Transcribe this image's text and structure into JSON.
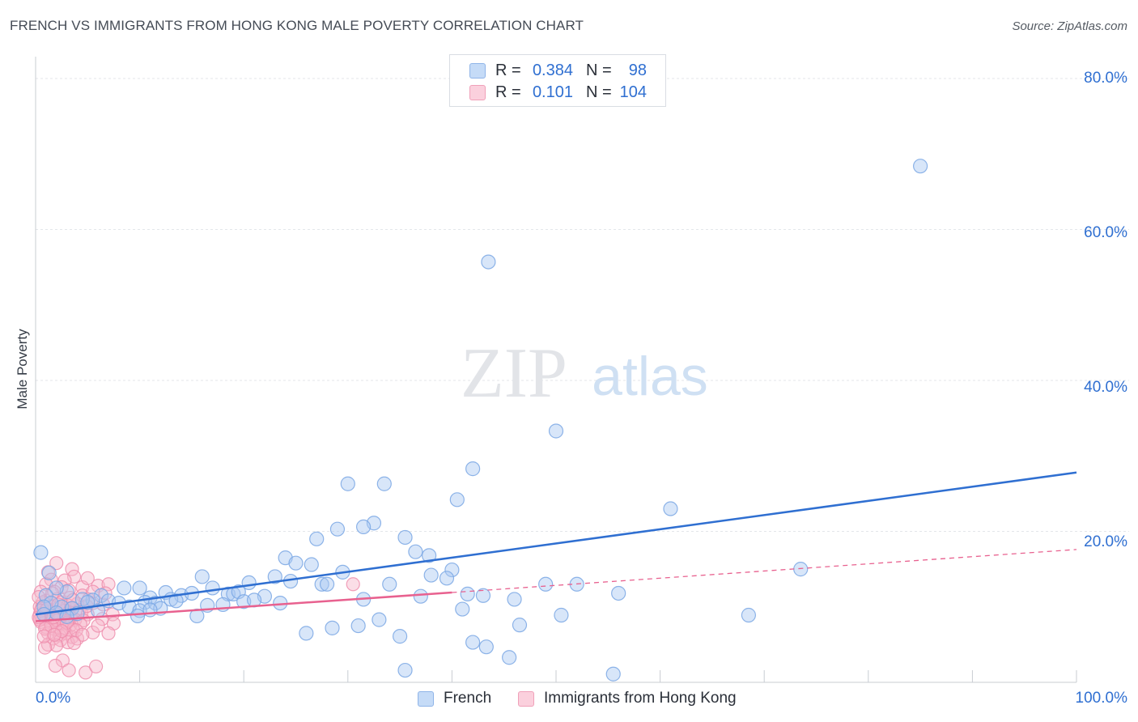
{
  "header": {
    "title": "FRENCH VS IMMIGRANTS FROM HONG KONG MALE POVERTY CORRELATION CHART",
    "source": "Source: ZipAtlas.com"
  },
  "watermark": {
    "zip": "ZIP",
    "atlas": "atlas"
  },
  "legend_top": {
    "rows": [
      {
        "r_label": "R =",
        "r_value": "0.384",
        "n_label": "N =",
        "n_value": "98",
        "color": "#a9c8f1"
      },
      {
        "r_label": "R =",
        "r_value": "0.101",
        "n_label": "N =",
        "n_value": "104",
        "color": "#f6b6c9"
      }
    ]
  },
  "legend_bottom": {
    "items": [
      {
        "label": "French",
        "color": "#a9c8f1"
      },
      {
        "label": "Immigrants from Hong Kong",
        "color": "#f6b6c9"
      }
    ]
  },
  "axes": {
    "y_ticks": [
      "80.0%",
      "60.0%",
      "40.0%",
      "20.0%"
    ],
    "x_left": "0.0%",
    "x_right": "100.0%"
  },
  "chart_data": {
    "type": "scatter",
    "title": "FRENCH VS IMMIGRANTS FROM HONG KONG MALE POVERTY CORRELATION CHART",
    "xlabel": "",
    "ylabel": "Male Poverty",
    "xlim": [
      0,
      100
    ],
    "ylim": [
      0,
      82
    ],
    "y_ticks": [
      20,
      40,
      60,
      80
    ],
    "grid": true,
    "legend": "bottom-center",
    "colors": {
      "french": "#2f6fd1",
      "french_fill": "#a9c8f1",
      "hongkong": "#e8618f",
      "hongkong_fill": "#f6b6c9"
    },
    "series": [
      {
        "name": "French",
        "r": 0.384,
        "n": 98,
        "trend": {
          "x": [
            0,
            100
          ],
          "y": [
            9.0,
            27.8
          ],
          "style": "solid"
        },
        "points": [
          [
            85,
            68.4
          ],
          [
            43.5,
            55.7
          ],
          [
            50,
            33.3
          ],
          [
            42,
            28.3
          ],
          [
            30,
            26.3
          ],
          [
            33.5,
            26.3
          ],
          [
            40.5,
            24.2
          ],
          [
            61,
            23
          ],
          [
            32.5,
            21.1
          ],
          [
            31.5,
            20.6
          ],
          [
            29,
            20.3
          ],
          [
            35.5,
            19.2
          ],
          [
            27,
            19
          ],
          [
            36.5,
            17.3
          ],
          [
            37.8,
            16.8
          ],
          [
            24,
            16.5
          ],
          [
            25,
            15.8
          ],
          [
            26.5,
            15.6
          ],
          [
            73.5,
            15
          ],
          [
            40,
            14.9
          ],
          [
            29.5,
            14.6
          ],
          [
            38,
            14.2
          ],
          [
            39.5,
            13.8
          ],
          [
            23,
            14
          ],
          [
            16,
            14
          ],
          [
            20.5,
            13.2
          ],
          [
            24.5,
            13.4
          ],
          [
            27.5,
            13
          ],
          [
            28,
            13
          ],
          [
            34,
            13
          ],
          [
            49,
            13
          ],
          [
            52,
            13
          ],
          [
            8.5,
            12.5
          ],
          [
            10,
            12.5
          ],
          [
            17,
            12.5
          ],
          [
            18.5,
            11.7
          ],
          [
            19,
            11.7
          ],
          [
            19.5,
            12
          ],
          [
            22,
            11.4
          ],
          [
            12.5,
            11.9
          ],
          [
            14,
            11.5
          ],
          [
            15,
            11.8
          ],
          [
            11,
            11.2
          ],
          [
            13,
            11
          ],
          [
            6.3,
            11.5
          ],
          [
            7,
            10.8
          ],
          [
            5.5,
            10.9
          ],
          [
            8,
            10.5
          ],
          [
            3,
            12
          ],
          [
            4.5,
            11
          ],
          [
            5,
            10.6
          ],
          [
            10.5,
            10.6
          ],
          [
            11.5,
            10.5
          ],
          [
            12,
            9.8
          ],
          [
            13.5,
            10.8
          ],
          [
            16.5,
            10.2
          ],
          [
            18,
            10.3
          ],
          [
            20,
            10.7
          ],
          [
            21,
            10.9
          ],
          [
            23.5,
            10.5
          ],
          [
            31.5,
            11
          ],
          [
            37,
            11.4
          ],
          [
            43,
            11.5
          ],
          [
            46,
            11
          ],
          [
            56,
            11.8
          ],
          [
            41.5,
            11.7
          ],
          [
            2.5,
            10
          ],
          [
            3.5,
            9.8
          ],
          [
            4,
            9.1
          ],
          [
            6,
            9.5
          ],
          [
            9,
            10
          ],
          [
            10,
            9.5
          ],
          [
            11,
            9.6
          ],
          [
            9.8,
            8.8
          ],
          [
            15.5,
            8.8
          ],
          [
            41,
            9.7
          ],
          [
            50.5,
            8.9
          ],
          [
            68.5,
            8.9
          ],
          [
            33,
            8.3
          ],
          [
            31,
            7.5
          ],
          [
            28.5,
            7.2
          ],
          [
            46.5,
            7.6
          ],
          [
            26,
            6.5
          ],
          [
            35,
            6.1
          ],
          [
            42,
            5.3
          ],
          [
            43.3,
            4.7
          ],
          [
            45.5,
            3.3
          ],
          [
            35.5,
            1.6
          ],
          [
            55.5,
            1.1
          ],
          [
            0.5,
            17.2
          ],
          [
            1.3,
            14.5
          ],
          [
            2,
            12.5
          ],
          [
            1,
            11.5
          ],
          [
            1.5,
            10.5
          ],
          [
            0.8,
            10
          ],
          [
            2,
            9.2
          ],
          [
            3,
            8.7
          ],
          [
            0.8,
            9
          ]
        ]
      },
      {
        "name": "Immigrants from Hong Kong",
        "r": 0.101,
        "n": 104,
        "trend": {
          "x": [
            0,
            100
          ],
          "y": [
            8.1,
            17.6
          ],
          "style": "solid to 40, dashed beyond"
        },
        "points": [
          [
            2,
            15.8
          ],
          [
            3.5,
            15
          ],
          [
            1.2,
            14.6
          ],
          [
            3.7,
            14
          ],
          [
            1.5,
            13.6
          ],
          [
            2.8,
            13.5
          ],
          [
            1,
            13
          ],
          [
            2.5,
            12.6
          ],
          [
            3.2,
            12.2
          ],
          [
            4.5,
            12.6
          ],
          [
            1.8,
            12
          ],
          [
            6,
            12.8
          ],
          [
            0.5,
            12
          ],
          [
            4.5,
            11.5
          ],
          [
            3.3,
            11.2
          ],
          [
            5.1,
            11
          ],
          [
            2,
            11
          ],
          [
            1,
            10.8
          ],
          [
            0.7,
            10.6
          ],
          [
            2.5,
            10.6
          ],
          [
            3.1,
            10.2
          ],
          [
            4,
            10.4
          ],
          [
            5.5,
            10.5
          ],
          [
            1.5,
            10
          ],
          [
            0.4,
            10
          ],
          [
            2.2,
            9.9
          ],
          [
            3.5,
            9.8
          ],
          [
            4.2,
            9.6
          ],
          [
            0.8,
            9.4
          ],
          [
            1.3,
            9.3
          ],
          [
            2.8,
            9.5
          ],
          [
            0.4,
            9
          ],
          [
            1.9,
            9.1
          ],
          [
            3.1,
            9.1
          ],
          [
            4.4,
            9.2
          ],
          [
            5,
            9
          ],
          [
            0.6,
            8.8
          ],
          [
            1.5,
            8.8
          ],
          [
            2.4,
            8.7
          ],
          [
            3.4,
            8.6
          ],
          [
            0.9,
            8.4
          ],
          [
            2,
            8.3
          ],
          [
            2.9,
            8.1
          ],
          [
            3.8,
            8.3
          ],
          [
            4.6,
            8.2
          ],
          [
            0.5,
            8
          ],
          [
            1.4,
            7.9
          ],
          [
            2.3,
            7.7
          ],
          [
            3.3,
            7.5
          ],
          [
            4.3,
            7.7
          ],
          [
            1,
            7.3
          ],
          [
            1.9,
            7
          ],
          [
            2.7,
            7
          ],
          [
            3.6,
            7
          ],
          [
            5.5,
            6.6
          ],
          [
            1.2,
            6.5
          ],
          [
            2.3,
            6.2
          ],
          [
            2.9,
            6.5
          ],
          [
            3.5,
            6
          ],
          [
            1.7,
            5.8
          ],
          [
            2.4,
            5.6
          ],
          [
            3.1,
            5.3
          ],
          [
            4,
            5.8
          ],
          [
            1.2,
            5
          ],
          [
            2,
            4.9
          ],
          [
            0.9,
            4.6
          ],
          [
            2.6,
            2.9
          ],
          [
            1.9,
            2.2
          ],
          [
            3.2,
            1.6
          ],
          [
            4.8,
            1.3
          ],
          [
            5.8,
            2.1
          ],
          [
            5,
            13.8
          ],
          [
            7,
            13
          ],
          [
            6.5,
            10.3
          ],
          [
            7.4,
            9
          ],
          [
            6.4,
            8.4
          ],
          [
            7.5,
            7.8
          ],
          [
            7,
            6.5
          ],
          [
            6.7,
            11.8
          ],
          [
            2.2,
            10.3
          ],
          [
            1.6,
            11.8
          ],
          [
            0.3,
            11.3
          ],
          [
            0.6,
            9.8
          ],
          [
            3.6,
            10.9
          ],
          [
            4.9,
            10.1
          ],
          [
            1,
            8.8
          ],
          [
            0.4,
            8.3
          ],
          [
            2.1,
            8.2
          ],
          [
            3,
            7.9
          ],
          [
            1.5,
            7.5
          ],
          [
            0.9,
            7.1
          ],
          [
            2.5,
            6.8
          ],
          [
            3.9,
            6.9
          ],
          [
            4.5,
            6.3
          ],
          [
            6,
            7.5
          ],
          [
            0.8,
            6.1
          ],
          [
            1.8,
            6.3
          ],
          [
            3.7,
            5.2
          ],
          [
            0.5,
            9.5
          ],
          [
            1.1,
            9.7
          ],
          [
            1.7,
            8.6
          ],
          [
            0.3,
            8.6
          ],
          [
            30.5,
            13
          ],
          [
            5.5,
            12
          ]
        ]
      }
    ]
  }
}
